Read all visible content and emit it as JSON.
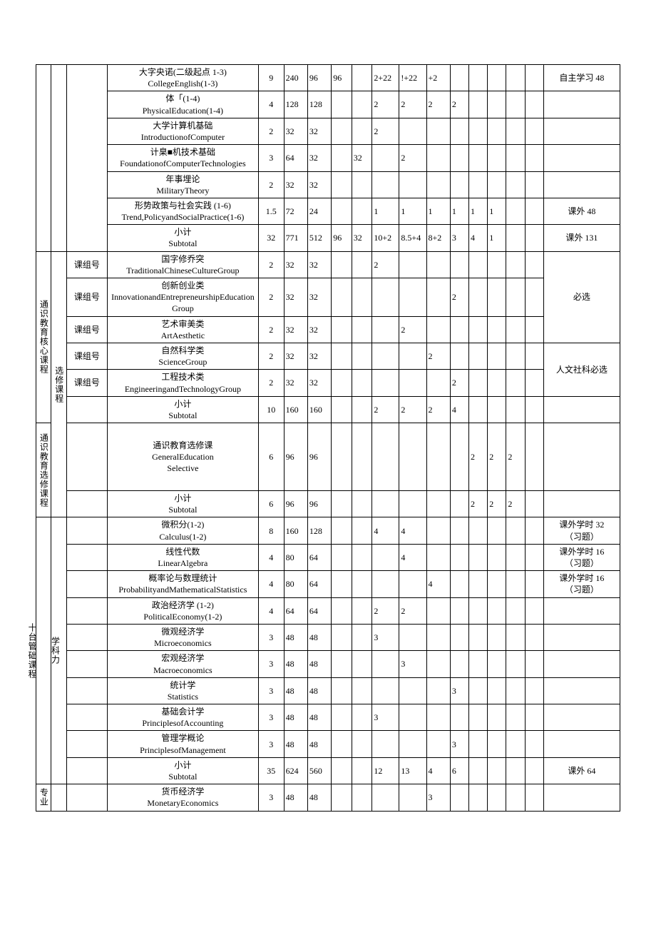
{
  "categories": {
    "cat1_sub1": "通识教育核心课程",
    "cat1_sub2": "通识教育选修课程",
    "cat2": "学科力",
    "cat2b": "十台管础课程",
    "cat3": "专业",
    "electiveCourse": "选修课程",
    "groupNo": "课组号"
  },
  "rows": [
    {
      "cat": "",
      "sub": "",
      "code": "",
      "course": "大字央诺(二级起点 1-3)\nCollegeEnglish(1-3)",
      "credits": "9",
      "h1": "240",
      "h2": "96",
      "h3": "96",
      "h4": "",
      "s1": "2+22",
      "s2": "!+22",
      "s3": "+2",
      "s4": "",
      "s5": "",
      "s6": "",
      "s7": "",
      "s8": "",
      "note": "自主学习 48"
    },
    {
      "cat": "",
      "sub": "",
      "code": "",
      "course": "体「(1-4)\nPhysicalEducation(1-4)",
      "credits": "4",
      "h1": "128",
      "h2": "128",
      "h3": "",
      "h4": "",
      "s1": "2",
      "s2": "2",
      "s3": "2",
      "s4": "2",
      "s5": "",
      "s6": "",
      "s7": "",
      "s8": "",
      "note": ""
    },
    {
      "cat": "",
      "sub": "",
      "code": "",
      "course": "大学计算机基础\nIntroductionofComputer",
      "credits": "2",
      "h1": "32",
      "h2": "32",
      "h3": "",
      "h4": "",
      "s1": "2",
      "s2": "",
      "s3": "",
      "s4": "",
      "s5": "",
      "s6": "",
      "s7": "",
      "s8": "",
      "note": ""
    },
    {
      "cat": "",
      "sub": "",
      "code": "",
      "course": "计臬■机技术基础\nFoundationofComputerTechnologies",
      "credits": "3",
      "h1": "64",
      "h2": "32",
      "h3": "",
      "h4": "32",
      "s1": "",
      "s2": "2",
      "s3": "",
      "s4": "",
      "s5": "",
      "s6": "",
      "s7": "",
      "s8": "",
      "note": ""
    },
    {
      "cat": "",
      "sub": "",
      "code": "",
      "course": "年事埋论\nMilitaryTheory",
      "credits": "2",
      "h1": "32",
      "h2": "32",
      "h3": "",
      "h4": "",
      "s1": "",
      "s2": "",
      "s3": "",
      "s4": "",
      "s5": "",
      "s6": "",
      "s7": "",
      "s8": "",
      "note": ""
    },
    {
      "cat": "",
      "sub": "",
      "code": "",
      "course": "形势政策与社会实践 (1-6)\nTrend,PolicyandSocialPractice(1-6)",
      "credits": "1.5",
      "h1": "72",
      "h2": "24",
      "h3": "",
      "h4": "",
      "s1": "1",
      "s2": "1",
      "s3": "1",
      "s4": "1",
      "s5": "1",
      "s6": "1",
      "s7": "",
      "s8": "",
      "note": "课外 48"
    },
    {
      "cat": "",
      "sub": "",
      "code": "",
      "course": "小计\nSubtotal",
      "credits": "32",
      "h1": "771",
      "h2": "512",
      "h3": "96",
      "h4": "32",
      "s1": "10+2",
      "s2": "8.5+4",
      "s3": "8+2",
      "s4": "3",
      "s5": "4",
      "s6": "1",
      "s7": "",
      "s8": "",
      "note": "课外 131"
    },
    {
      "cat": "通识教育核心课程",
      "sub": "选修课程",
      "code": "课组号",
      "course": "国字修乔突\nTraditionalChineseCultureGroup",
      "credits": "2",
      "h1": "32",
      "h2": "32",
      "h3": "",
      "h4": "",
      "s1": "2",
      "s2": "",
      "s3": "",
      "s4": "",
      "s5": "",
      "s6": "",
      "s7": "",
      "s8": "",
      "note": "必选",
      "noteSpan": 3
    },
    {
      "cat": "",
      "sub": "",
      "code": "课组号",
      "course": "创新创业类\nInnovationandEntrepreneurshipEducationGroup",
      "credits": "2",
      "h1": "32",
      "h2": "32",
      "h3": "",
      "h4": "",
      "s1": "",
      "s2": "",
      "s3": "",
      "s4": "2",
      "s5": "",
      "s6": "",
      "s7": "",
      "s8": ""
    },
    {
      "cat": "",
      "sub": "",
      "code": "课组号",
      "course": "艺术审美类\nArtAesthetic",
      "credits": "2",
      "h1": "32",
      "h2": "32",
      "h3": "",
      "h4": "",
      "s1": "",
      "s2": "2",
      "s3": "",
      "s4": "",
      "s5": "",
      "s6": "",
      "s7": "",
      "s8": ""
    },
    {
      "cat": "",
      "sub": "",
      "code": "课组号",
      "course": "自然科学类\nScienceGroup",
      "credits": "2",
      "h1": "32",
      "h2": "32",
      "h3": "",
      "h4": "",
      "s1": "",
      "s2": "",
      "s3": "2",
      "s4": "",
      "s5": "",
      "s6": "",
      "s7": "",
      "s8": "",
      "note": "人文社科必选",
      "noteSpan": 2
    },
    {
      "cat": "",
      "sub": "",
      "code": "课组号",
      "course": "工程技术类\nEngineeringandTechnologyGroup",
      "credits": "2",
      "h1": "32",
      "h2": "32",
      "h3": "",
      "h4": "",
      "s1": "",
      "s2": "",
      "s3": "",
      "s4": "2",
      "s5": "",
      "s6": "",
      "s7": "",
      "s8": ""
    },
    {
      "cat": "",
      "sub": "",
      "code": "",
      "course": "小计\nSubtotal",
      "credits": "10",
      "h1": "160",
      "h2": "160",
      "h3": "",
      "h4": "",
      "s1": "2",
      "s2": "2",
      "s3": "2",
      "s4": "4",
      "s5": "",
      "s6": "",
      "s7": "",
      "s8": "",
      "note": ""
    },
    {
      "cat": "通识教育选修课程",
      "sub": "",
      "code": "",
      "course": "通识教育选修课\nGeneralEducation\nSelective",
      "credits": "6",
      "h1": "96",
      "h2": "96",
      "h3": "",
      "h4": "",
      "s1": "",
      "s2": "",
      "s3": "",
      "s4": "",
      "s5": "2",
      "s6": "2",
      "s7": "2",
      "s8": "",
      "note": ""
    },
    {
      "cat": "",
      "sub": "",
      "code": "",
      "course": "小计\nSubtotal",
      "credits": "6",
      "h1": "96",
      "h2": "96",
      "h3": "",
      "h4": "",
      "s1": "",
      "s2": "",
      "s3": "",
      "s4": "",
      "s5": "2",
      "s6": "2",
      "s7": "2",
      "s8": "",
      "note": ""
    },
    {
      "cat": "学科力\n\n十台管础课程",
      "sub": "",
      "code": "",
      "course": "微积分(1-2)\nCalculus(1-2)",
      "credits": "8",
      "h1": "160",
      "h2": "128",
      "h3": "",
      "h4": "",
      "s1": "4",
      "s2": "4",
      "s3": "",
      "s4": "",
      "s5": "",
      "s6": "",
      "s7": "",
      "s8": "",
      "note": "课外学时 32\n（习题）"
    },
    {
      "cat": "",
      "sub": "",
      "code": "",
      "course": "线性代数\nLinearAlgebra",
      "credits": "4",
      "h1": "80",
      "h2": "64",
      "h3": "",
      "h4": "",
      "s1": "",
      "s2": "4",
      "s3": "",
      "s4": "",
      "s5": "",
      "s6": "",
      "s7": "",
      "s8": "",
      "note": "课外学时 16\n（习题）"
    },
    {
      "cat": "",
      "sub": "",
      "code": "",
      "course": "概率论与数理统计\nProbabilityandMathematicalStatistics",
      "credits": "4",
      "h1": "80",
      "h2": "64",
      "h3": "",
      "h4": "",
      "s1": "",
      "s2": "",
      "s3": "4",
      "s4": "",
      "s5": "",
      "s6": "",
      "s7": "",
      "s8": "",
      "note": "课外学时 16\n（习题）"
    },
    {
      "cat": "",
      "sub": "",
      "code": "",
      "course": "政治经济学 (1-2)\nPoliticalEconomy(1-2)",
      "credits": "4",
      "h1": "64",
      "h2": "64",
      "h3": "",
      "h4": "",
      "s1": "2",
      "s2": "2",
      "s3": "",
      "s4": "",
      "s5": "",
      "s6": "",
      "s7": "",
      "s8": "",
      "note": ""
    },
    {
      "cat": "",
      "sub": "",
      "code": "",
      "course": "微观经济学\nMicroeconomics",
      "credits": "3",
      "h1": "48",
      "h2": "48",
      "h3": "",
      "h4": "",
      "s1": "3",
      "s2": "",
      "s3": "",
      "s4": "",
      "s5": "",
      "s6": "",
      "s7": "",
      "s8": "",
      "note": ""
    },
    {
      "cat": "",
      "sub": "",
      "code": "",
      "course": "宏观经济学\nMacroeconomics",
      "credits": "3",
      "h1": "48",
      "h2": "48",
      "h3": "",
      "h4": "",
      "s1": "",
      "s2": "3",
      "s3": "",
      "s4": "",
      "s5": "",
      "s6": "",
      "s7": "",
      "s8": "",
      "note": ""
    },
    {
      "cat": "",
      "sub": "",
      "code": "",
      "course": "统计学\nStatistics",
      "credits": "3",
      "h1": "48",
      "h2": "48",
      "h3": "",
      "h4": "",
      "s1": "",
      "s2": "",
      "s3": "",
      "s4": "3",
      "s5": "",
      "s6": "",
      "s7": "",
      "s8": "",
      "note": ""
    },
    {
      "cat": "",
      "sub": "",
      "code": "",
      "course": "基础会计学\nPrinciplesofAccounting",
      "credits": "3",
      "h1": "48",
      "h2": "48",
      "h3": "",
      "h4": "",
      "s1": "3",
      "s2": "",
      "s3": "",
      "s4": "",
      "s5": "",
      "s6": "",
      "s7": "",
      "s8": "",
      "note": ""
    },
    {
      "cat": "",
      "sub": "",
      "code": "",
      "course": "管理学概论\nPrinciplesofManagement",
      "credits": "3",
      "h1": "48",
      "h2": "48",
      "h3": "",
      "h4": "",
      "s1": "",
      "s2": "",
      "s3": "",
      "s4": "3",
      "s5": "",
      "s6": "",
      "s7": "",
      "s8": "",
      "note": ""
    },
    {
      "cat": "",
      "sub": "",
      "code": "",
      "course": "小计\nSubtotal",
      "credits": "35",
      "h1": "624",
      "h2": "560",
      "h3": "",
      "h4": "",
      "s1": "12",
      "s2": "13",
      "s3": "4",
      "s4": "6",
      "s5": "",
      "s6": "",
      "s7": "",
      "s8": "",
      "note": "课外 64"
    },
    {
      "cat": "专业",
      "sub": "",
      "code": "",
      "course": "货币经济学\nMonetaryEconomics",
      "credits": "3",
      "h1": "48",
      "h2": "48",
      "h3": "",
      "h4": "",
      "s1": "",
      "s2": "",
      "s3": "3",
      "s4": "",
      "s5": "",
      "s6": "",
      "s7": "",
      "s8": "",
      "note": ""
    }
  ]
}
